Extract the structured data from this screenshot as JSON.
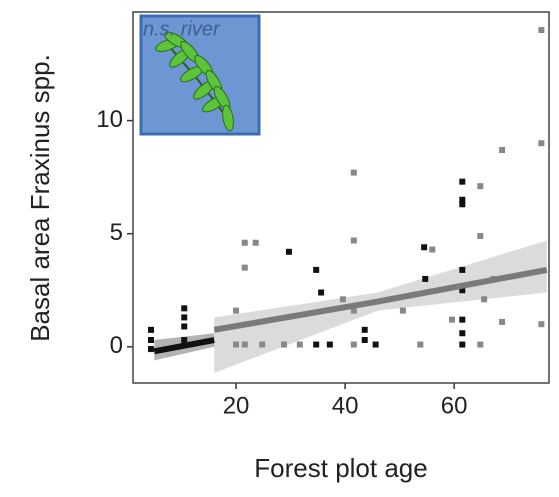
{
  "chart_data": {
    "type": "scatter",
    "xlabel": "Forest plot age",
    "ylabel": "Basal area Fraxinus spp.",
    "annotation": "n.s. river",
    "xlim": [
      1.1,
      77.4
    ],
    "ylim": [
      -1.6,
      14.8
    ],
    "xticks": [
      20,
      40,
      60
    ],
    "yticks": [
      0,
      5,
      10
    ],
    "series": [
      {
        "color": "#111111",
        "x": [
          4.4,
          4.4,
          4.4,
          10.5,
          10.5,
          10.5,
          10.5,
          29.7,
          34.7,
          34.7,
          35.6,
          37.2,
          43.6,
          43.6,
          45.6,
          54.5,
          54.7,
          61.5,
          61.5,
          61.5,
          61.5,
          61.5,
          61.5,
          61.5,
          61.5
        ],
        "values": [
          0.75,
          0.3,
          -0.1,
          1.7,
          1.3,
          0.9,
          0.3,
          4.2,
          3.4,
          0.1,
          2.4,
          0.1,
          0.75,
          0.3,
          0.1,
          4.4,
          3.0,
          7.3,
          6.5,
          6.3,
          3.4,
          2.5,
          1.2,
          0.6,
          0.1
        ]
      },
      {
        "color": "#888888",
        "x": [
          21.6,
          21.6,
          21.6,
          23.6,
          20,
          20,
          24.8,
          28.8,
          31.7,
          41.6,
          41.6,
          41.6,
          41.6,
          39.6,
          50.6,
          53.8,
          56,
          59.6,
          64.8,
          64.8,
          64.8,
          65.5,
          68.8,
          68.8,
          76,
          76,
          76,
          67.2
        ],
        "values": [
          4.6,
          3.5,
          0.1,
          4.6,
          1.6,
          0.1,
          0.1,
          0.1,
          0.1,
          7.7,
          4.7,
          1.6,
          0.1,
          2.1,
          1.6,
          0.1,
          4.3,
          1.2,
          7.1,
          4.9,
          0.1,
          2.1,
          8.7,
          1.1,
          14.0,
          9.0,
          1.0,
          3.0
        ]
      }
    ],
    "fits": [
      {
        "color": "#111111",
        "band_color": "#9a9a9a",
        "x": [
          5,
          16
        ],
        "values": [
          -0.2,
          0.3
        ],
        "lower": [
          -0.6,
          0.0
        ],
        "upper": [
          0.3,
          0.6
        ]
      },
      {
        "color": "#7a7a7a",
        "band_color": "#cfcfcf",
        "x": [
          16,
          46,
          77
        ],
        "values": [
          0.75,
          2.0,
          3.4
        ],
        "lower": [
          -1.15,
          1.6,
          2.4
        ],
        "upper": [
          1.3,
          2.4,
          4.7
        ]
      }
    ]
  }
}
